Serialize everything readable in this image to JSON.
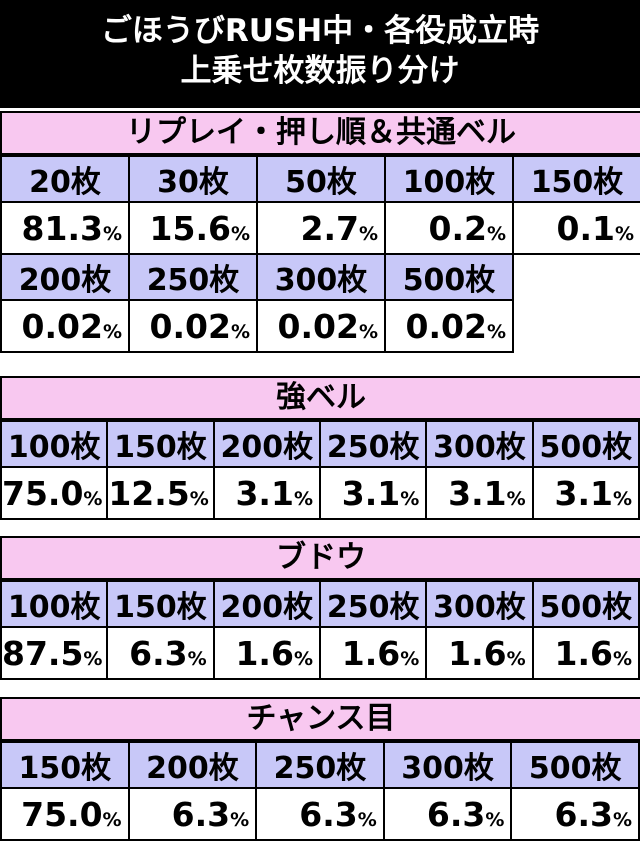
{
  "title": {
    "line1": "ごほうびRUSH中・各役成立時",
    "line2": "上乗せ枚数振り分け"
  },
  "sections": [
    {
      "heading": "リプレイ・押し順＆共通ベル",
      "rows": [
        {
          "labels": [
            "20枚",
            "30枚",
            "50枚",
            "100枚",
            "150枚"
          ],
          "values": [
            "81.3",
            "15.6",
            "2.7",
            "0.2",
            "0.1"
          ]
        },
        {
          "labels": [
            "200枚",
            "250枚",
            "300枚",
            "500枚"
          ],
          "values": [
            "0.02",
            "0.02",
            "0.02",
            "0.02"
          ]
        }
      ]
    },
    {
      "heading": "強ベル",
      "rows": [
        {
          "labels": [
            "100枚",
            "150枚",
            "200枚",
            "250枚",
            "300枚",
            "500枚"
          ],
          "values": [
            "75.0",
            "12.5",
            "3.1",
            "3.1",
            "3.1",
            "3.1"
          ]
        }
      ]
    },
    {
      "heading": "ブドウ",
      "rows": [
        {
          "labels": [
            "100枚",
            "150枚",
            "200枚",
            "250枚",
            "300枚",
            "500枚"
          ],
          "values": [
            "87.5",
            "6.3",
            "1.6",
            "1.6",
            "1.6",
            "1.6"
          ]
        }
      ]
    },
    {
      "heading": "チャンス目",
      "rows": [
        {
          "labels": [
            "150枚",
            "200枚",
            "250枚",
            "300枚",
            "500枚"
          ],
          "values": [
            "75.0",
            "6.3",
            "6.3",
            "6.3",
            "6.3"
          ]
        }
      ]
    }
  ],
  "unit": "%",
  "colors": {
    "heading_bg": "#f8c8f0",
    "label_bg": "#c8c8f8",
    "title_bg": "#000000"
  }
}
